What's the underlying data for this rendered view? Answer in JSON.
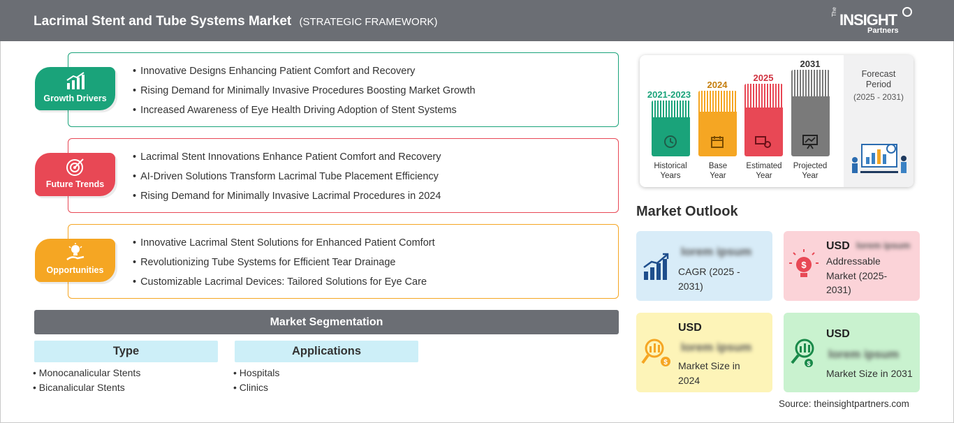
{
  "header": {
    "title": "Lacrimal Stent and Tube Systems Market",
    "subtitle": "(STRATEGIC FRAMEWORK)",
    "logo_text_the": "The",
    "logo_text_main": "INSIGHT",
    "logo_text_sub": "Partners"
  },
  "colors": {
    "header_bg": "#6b6e74",
    "growth": "#1aa37a",
    "trends": "#e84855",
    "opportunities": "#f5a623"
  },
  "sections": [
    {
      "label": "Growth Drivers",
      "icon": "bar-chart-growth-icon",
      "items": [
        "Innovative Designs Enhancing Patient Comfort and Recovery",
        "Rising Demand for Minimally Invasive Procedures Boosting Market Growth",
        "Increased Awareness of Eye Health Driving Adoption of Stent Systems"
      ]
    },
    {
      "label": "Future Trends",
      "icon": "target-icon",
      "items": [
        "Lacrimal Stent Innovations Enhance Patient Comfort and Recovery",
        "AI-Driven Solutions Transform Lacrimal Tube Placement Efficiency",
        "Rising Demand for Minimally Invasive Lacrimal Procedures in 2024"
      ]
    },
    {
      "label": "Opportunities",
      "icon": "lightbulb-hand-icon",
      "items": [
        "Innovative Lacrimal Stent Solutions for Enhanced Patient Comfort",
        "Revolutionizing Tube Systems for Efficient Tear Drainage",
        "Customizable Lacrimal Devices: Tailored Solutions for Eye Care"
      ]
    }
  ],
  "segmentation": {
    "title": "Market Segmentation",
    "columns": [
      {
        "header": "Type",
        "items": [
          "Monocanalicular Stents",
          "Bicanalicular Stents"
        ]
      },
      {
        "header": "Applications",
        "items": [
          "Hospitals",
          "Clinics"
        ]
      }
    ]
  },
  "timeline": {
    "bars": [
      {
        "year": "2021-2023",
        "caption": [
          "Historical",
          "Years"
        ],
        "color": "#1aa37a",
        "icon": "history-clock-icon"
      },
      {
        "year": "2024",
        "caption": [
          "Base",
          "Year"
        ],
        "color": "#f5a623",
        "icon": "calendar-icon"
      },
      {
        "year": "2025",
        "caption": [
          "Estimated",
          "Year"
        ],
        "color": "#e84855",
        "icon": "money-gear-icon"
      },
      {
        "year": "2031",
        "caption": [
          "Projected",
          "Year"
        ],
        "color": "#7a7a7a",
        "icon": "presentation-chart-icon"
      }
    ],
    "forecast_title": "Forecast Period",
    "forecast_range": "(2025 - 2031)",
    "forecast_icon": "analytics-people-icon"
  },
  "outlook": {
    "title": "Market Outlook",
    "cagr": {
      "blurred": "lorem ipsum",
      "label": "CAGR (2025 - 2031)",
      "bg": "#d8ecf8",
      "icon": "growth-chart-icon"
    },
    "addressable": {
      "usd": "USD",
      "blurred": "lorem ipsum",
      "label": "Addressable Market (2025-2031)",
      "bg": "#fbd3d8",
      "icon": "money-bulb-icon"
    },
    "size_2024": {
      "usd": "USD",
      "blurred": "lorem ipsum",
      "label": "Market Size in 2024",
      "bg": "#fdf4b8",
      "icon": "money-search-icon"
    },
    "size_2031": {
      "usd": "USD",
      "blurred": "lorem ipsum",
      "label": "Market Size in 2031",
      "bg": "#c9f2cf",
      "icon": "money-search-growth-icon"
    }
  },
  "source": "Source: theinsightpartners.com"
}
